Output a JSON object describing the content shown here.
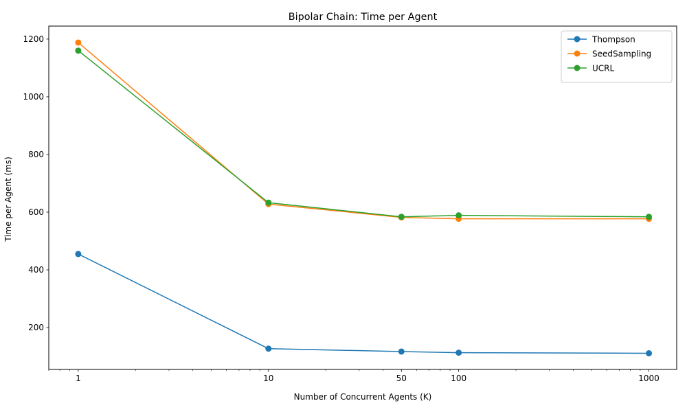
{
  "chart_data": {
    "type": "line",
    "title": "Bipolar Chain: Time per Agent",
    "xlabel": "Number of Concurrent Agents (K)",
    "ylabel": "Time per Agent (ms)",
    "xscale": "log",
    "xlim": [
      0.7,
      1400
    ],
    "ylim": [
      55,
      1245
    ],
    "x": [
      1,
      10,
      50,
      100,
      1000
    ],
    "x_tick_labels": [
      "1",
      "10",
      "50",
      "100",
      "1000"
    ],
    "y_ticks": [
      200,
      400,
      600,
      800,
      1000,
      1200
    ],
    "grid": false,
    "legend_position": "top-right",
    "series": [
      {
        "name": "Thompson",
        "color": "#1f77b4",
        "values": [
          455,
          127,
          117,
          113,
          111
        ]
      },
      {
        "name": "SeedSampling",
        "color": "#ff7f0e",
        "values": [
          1188,
          628,
          582,
          577,
          577
        ]
      },
      {
        "name": "UCRL",
        "color": "#2ca02c",
        "values": [
          1160,
          633,
          584,
          589,
          584
        ]
      }
    ]
  }
}
